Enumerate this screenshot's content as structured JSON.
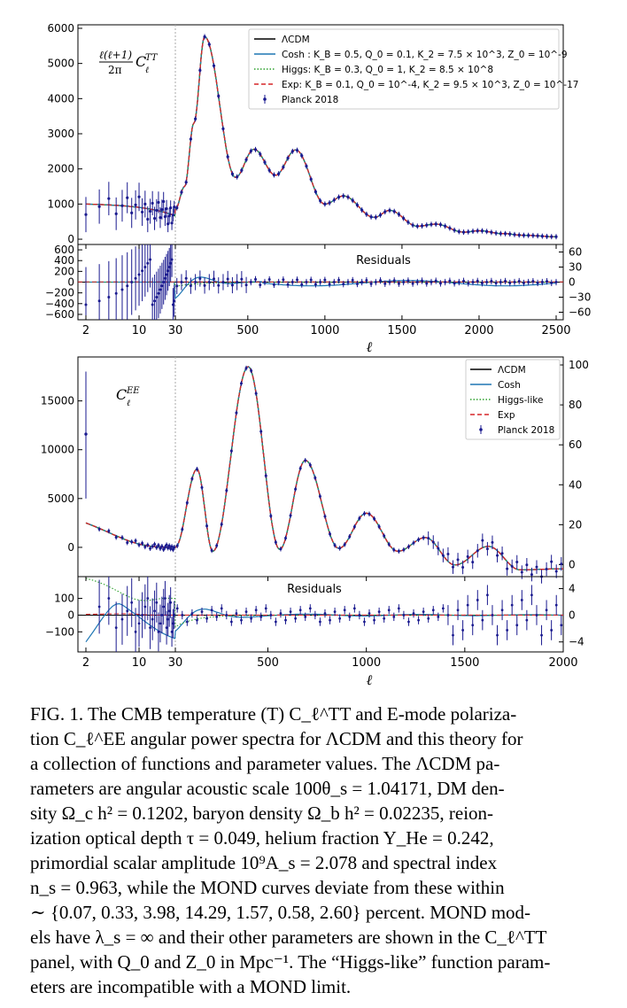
{
  "colors": {
    "lcdm": "#000000",
    "cosh": "#1f77b4",
    "higgs": "#2ca02c",
    "exp": "#d62728",
    "planck": "#1a1a8f"
  },
  "chart_data": [
    {
      "type": "line",
      "panel": "TT",
      "ylabel_math": "ℓ(ℓ+1)/2π C_ℓ^TT",
      "xlabel": "ℓ",
      "xticks": [
        "2",
        "10",
        "30",
        "500",
        "1000",
        "1500",
        "2000",
        "2500"
      ],
      "yticks": [
        "0",
        "1000",
        "2000",
        "3000",
        "4000",
        "5000",
        "6000"
      ],
      "ylim": [
        -150,
        6100
      ],
      "legend": [
        {
          "key": "lcdm",
          "label": "ΛCDM"
        },
        {
          "key": "cosh",
          "label": "Cosh : K_B = 0.5, Q_0 = 0.1, K_2 = 7.5 × 10^3, Z_0 = 10^-9"
        },
        {
          "key": "higgs",
          "label": "Higgs: K_B = 0.3, Q_0 = 1, K_2 = 8.5 × 10^8"
        },
        {
          "key": "exp",
          "label": "Exp: K_B = 0.1, Q_0 = 10^-4, K_2 = 9.5 × 10^3, Z_0 = 10^-17"
        },
        {
          "key": "planck",
          "label": "Planck 2018"
        }
      ],
      "peaks": [
        [
          220,
          5760
        ],
        [
          540,
          2560
        ],
        [
          810,
          2540
        ],
        [
          1120,
          1230
        ],
        [
          1420,
          820
        ],
        [
          1720,
          430
        ],
        [
          2000,
          240
        ]
      ],
      "troughs": [
        [
          420,
          1760
        ],
        [
          680,
          1820
        ],
        [
          1000,
          1000
        ],
        [
          1320,
          620
        ],
        [
          1600,
          370
        ],
        [
          1900,
          200
        ]
      ],
      "residuals": {
        "title": "Residuals",
        "left_ticks": [
          "600",
          "400",
          "200",
          "0",
          "−200",
          "−400",
          "−600"
        ],
        "right_ticks": [
          "60",
          "30",
          "0",
          "−30",
          "−60"
        ],
        "ylim": [
          -700,
          700
        ]
      }
    },
    {
      "type": "line",
      "panel": "EE",
      "ylabel_math": "C_ℓ^EE",
      "xlabel": "ℓ",
      "xticks": [
        "2",
        "10",
        "30",
        "500",
        "1000",
        "1500",
        "2000"
      ],
      "yticks": [
        "0",
        "5000",
        "10000",
        "15000"
      ],
      "right_yticks": [
        "0",
        "20",
        "40",
        "60",
        "80",
        "100"
      ],
      "ylim": [
        -3000,
        19500
      ],
      "legend": [
        {
          "key": "lcdm",
          "label": "ΛCDM"
        },
        {
          "key": "cosh",
          "label": "Cosh"
        },
        {
          "key": "higgs",
          "label": "Higgs-like"
        },
        {
          "key": "exp",
          "label": "Exp"
        },
        {
          "key": "planck",
          "label": "Planck 2018"
        }
      ],
      "peaks": [
        [
          140,
          8000
        ],
        [
          400,
          18500
        ],
        [
          690,
          8900
        ],
        [
          1000,
          3500
        ],
        [
          1300,
          1000
        ],
        [
          1620,
          100
        ]
      ],
      "troughs": [
        [
          220,
          -400
        ],
        [
          560,
          -200
        ],
        [
          860,
          -100
        ],
        [
          1160,
          -400
        ],
        [
          1450,
          -1800
        ],
        [
          1780,
          -2300
        ]
      ],
      "residuals": {
        "title": "Residuals",
        "left_ticks": [
          "100",
          "0",
          "−100"
        ],
        "right_ticks": [
          "4",
          "0",
          "−4"
        ],
        "ylim": [
          -220,
          230
        ]
      }
    }
  ],
  "caption": {
    "lines": [
      "FIG. 1.  The CMB temperature (T) C_ℓ^TT and E-mode polariza-",
      "tion C_ℓ^EE angular power spectra for ΛCDM and this theory for",
      "a collection of functions and parameter values.  The ΛCDM pa-",
      "rameters are angular acoustic scale 100θ_s = 1.04171, DM den-",
      "sity Ω_c h² = 0.1202, baryon density Ω_b h² = 0.02235, reion-",
      "ization optical depth τ = 0.049, helium fraction Y_He = 0.242,",
      "primordial scalar amplitude 10⁹A_s = 2.078 and spectral index",
      "n_s = 0.963, while the MOND curves deviate from these within",
      "∼ {0.07, 0.33, 3.98, 14.29, 1.57, 0.58, 2.60} percent. MOND mod-",
      "els have λ_s = ∞ and their other parameters are shown in the C_ℓ^TT",
      "panel, with Q_0 and Z_0 in Mpc⁻¹. The “Higgs-like” function param-",
      "eters are incompatible with a MOND limit."
    ]
  }
}
